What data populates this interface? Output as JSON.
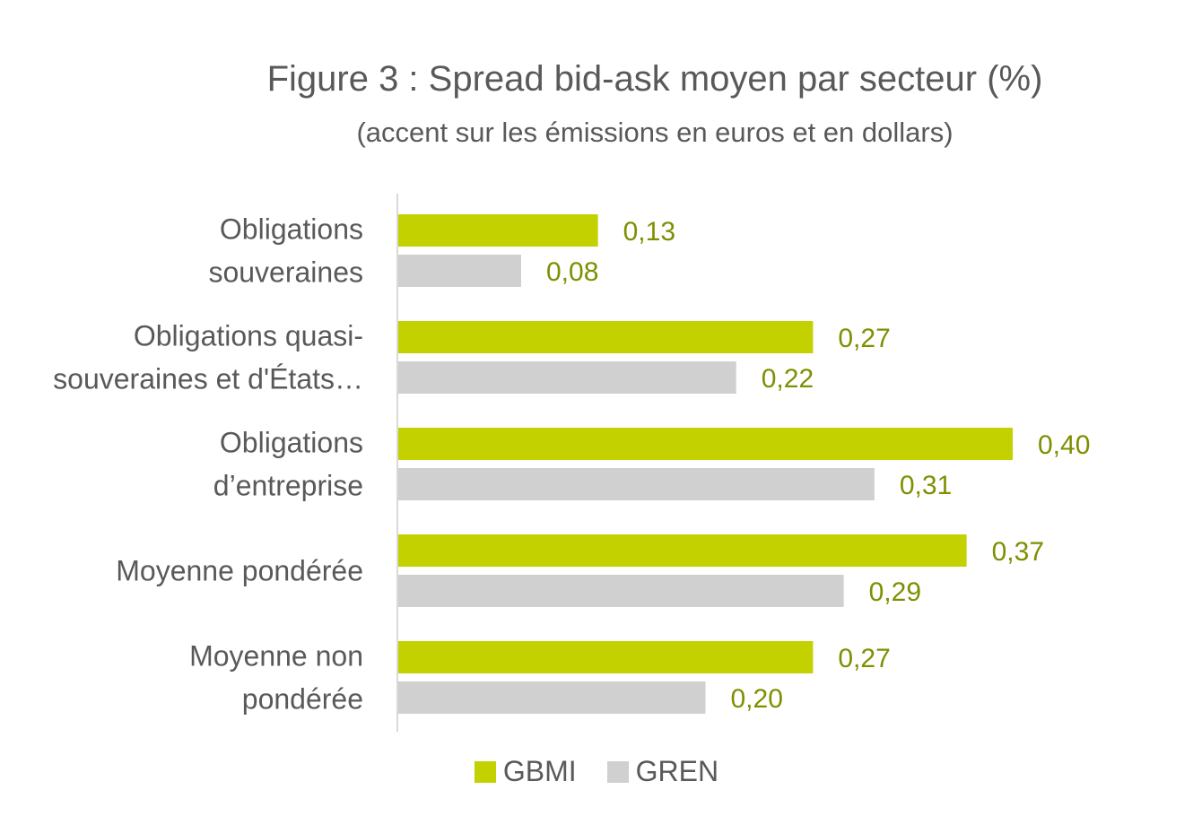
{
  "chart_data": {
    "type": "bar",
    "orientation": "horizontal",
    "title": "Figure 3 : Spread bid-ask moyen par secteur (%)",
    "subtitle": "(accent sur les émissions en euros et en dollars)",
    "categories": [
      [
        "Obligations",
        "souveraines"
      ],
      [
        "Obligations quasi-",
        "souveraines et d'États…"
      ],
      [
        "Obligations",
        "d’entreprise"
      ],
      [
        "Moyenne pondérée"
      ],
      [
        "Moyenne non",
        "pondérée"
      ]
    ],
    "series": [
      {
        "name": "GBMI",
        "color": "#c3d100",
        "values": [
          0.13,
          0.27,
          0.4,
          0.37,
          0.27
        ],
        "labels": [
          "0,13",
          "0,27",
          "0,40",
          "0,37",
          "0,27"
        ]
      },
      {
        "name": "GREN",
        "color": "#d0d0d0",
        "values": [
          0.08,
          0.22,
          0.31,
          0.29,
          0.2
        ],
        "labels": [
          "0,08",
          "0,22",
          "0,31",
          "0,29",
          "0,20"
        ]
      }
    ],
    "data_label_color": "#7f8f00",
    "xlim": [
      0,
      0.4
    ],
    "grid": false,
    "legend_position": "bottom"
  }
}
